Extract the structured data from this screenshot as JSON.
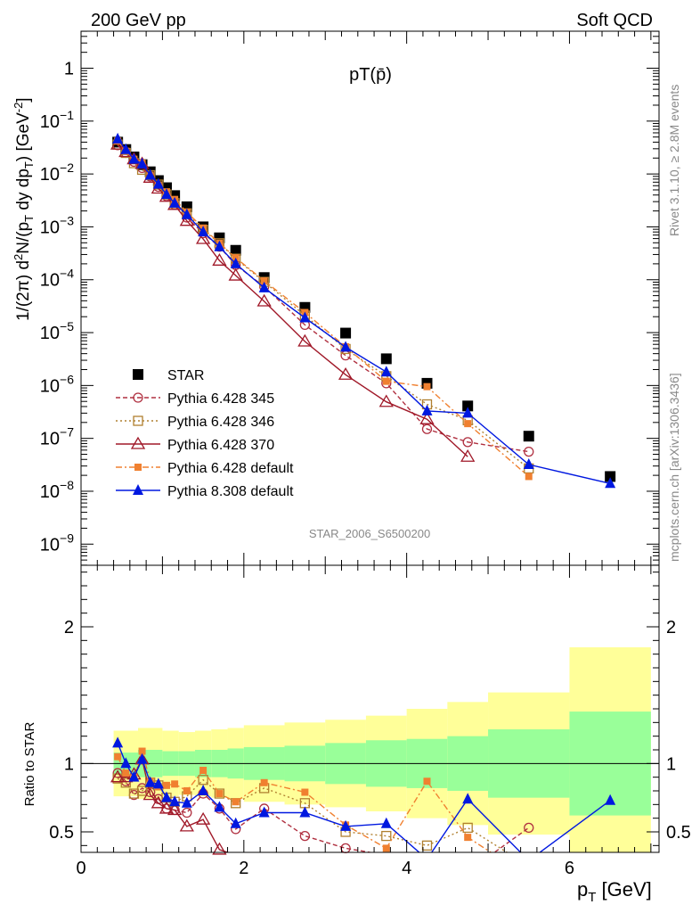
{
  "header": {
    "left": "200 GeV pp",
    "right": "Soft QCD",
    "plot_title": "pT(p̄)",
    "watermark": "STAR_2006_S6500200",
    "side_top": "Rivet 3.1.10, ≥ 2.8M events",
    "side_bottom": "mcplots.cern.ch [arXiv:1306.3436]"
  },
  "colors": {
    "STAR": "#000000",
    "py345": "#b03040",
    "py346": "#b08030",
    "py370": "#a01828",
    "py6def": "#f08030",
    "py8def": "#0018e0",
    "band_inner": "#99ff99",
    "band_outer": "#ffff99"
  },
  "chart_data": [
    {
      "type": "scatter",
      "panel": "main",
      "ylabel": "1/(2π) d²N/(p_T dy dp_T) [GeV⁻²]",
      "yscale": "log",
      "ylim": [
        4e-10,
        5
      ],
      "xlim": [
        0,
        7.1
      ],
      "y_tick_labels": [
        "1",
        "10⁻¹",
        "10⁻²",
        "10⁻³",
        "10⁻⁴",
        "10⁻⁵",
        "10⁻⁶",
        "10⁻⁷",
        "10⁻⁸",
        "10⁻⁹"
      ],
      "legend_position": "lower-left",
      "series": [
        {
          "name": "STAR",
          "key": "STAR",
          "marker": "square-filled",
          "line": "none",
          "x": [
            0.45,
            0.55,
            0.65,
            0.75,
            0.85,
            0.95,
            1.05,
            1.15,
            1.3,
            1.5,
            1.7,
            1.9,
            2.25,
            2.75,
            3.25,
            3.75,
            4.25,
            4.75,
            5.5,
            6.5
          ],
          "y": [
            0.04,
            0.029,
            0.021,
            0.015,
            0.011,
            0.0075,
            0.0055,
            0.0039,
            0.0024,
            0.001,
            0.00062,
            0.00036,
            0.00011,
            3e-05,
            9.8e-06,
            3.2e-06,
            1.1e-06,
            4.1e-07,
            1.1e-07,
            1.9e-08
          ]
        },
        {
          "name": "Pythia 6.428 345",
          "key": "py345",
          "marker": "circle-open",
          "line": "dashed",
          "x": [
            0.45,
            0.55,
            0.65,
            0.75,
            0.85,
            0.95,
            1.05,
            1.15,
            1.3,
            1.5,
            1.7,
            1.9,
            2.25,
            2.75,
            3.25,
            3.75,
            4.25,
            4.75,
            5.5
          ],
          "y": [
            0.035,
            0.025,
            0.017,
            0.013,
            0.009,
            0.0057,
            0.0038,
            0.0026,
            0.0015,
            0.00076,
            0.00042,
            0.00019,
            7.4e-05,
            1.4e-05,
            3.7e-06,
            1.1e-06,
            1.5e-07,
            8.5e-08,
            5.6e-08
          ]
        },
        {
          "name": "Pythia 6.428 346",
          "key": "py346",
          "marker": "square-open",
          "line": "dotted",
          "x": [
            0.45,
            0.55,
            0.65,
            0.75,
            0.85,
            0.95,
            1.05,
            1.15,
            1.3,
            1.5,
            1.7,
            1.9,
            2.25,
            2.75,
            3.25,
            3.75,
            4.25,
            4.75,
            5.5
          ],
          "y": [
            0.036,
            0.025,
            0.016,
            0.012,
            0.0095,
            0.0063,
            0.0041,
            0.0028,
            0.0018,
            0.00088,
            0.00049,
            0.00025,
            9.1e-05,
            2.1e-05,
            4.9e-06,
            1.5e-06,
            4.4e-07,
            2.2e-07,
            2.7e-08
          ]
        },
        {
          "name": "Pythia 6.428 370",
          "key": "py370",
          "marker": "triangle-open",
          "line": "solid",
          "x": [
            0.45,
            0.55,
            0.65,
            0.75,
            0.85,
            0.95,
            1.05,
            1.15,
            1.3,
            1.5,
            1.7,
            1.9,
            2.25,
            2.75,
            3.25,
            3.75,
            4.25,
            4.75
          ],
          "y": [
            0.036,
            0.026,
            0.019,
            0.0155,
            0.0085,
            0.0053,
            0.0037,
            0.0026,
            0.0013,
            0.00059,
            0.00023,
            0.00012,
            3.9e-05,
            6.8e-06,
            1.6e-06,
            4.9e-07,
            2.3e-07,
            4.5e-08
          ]
        },
        {
          "name": "Pythia 6.428 default",
          "key": "py6def",
          "marker": "square-filled-small",
          "line": "dash-dot",
          "x": [
            0.45,
            0.55,
            0.65,
            0.75,
            0.85,
            0.95,
            1.05,
            1.15,
            1.3,
            1.5,
            1.7,
            1.9,
            2.25,
            2.75,
            3.25,
            3.75,
            4.25,
            4.75,
            5.5
          ],
          "y": [
            0.042,
            0.027,
            0.019,
            0.016,
            0.0095,
            0.0062,
            0.0046,
            0.0033,
            0.0019,
            0.00095,
            0.00049,
            0.00026,
            9.5e-05,
            2.4e-05,
            5.4e-06,
            1.2e-06,
            9.5e-07,
            1.9e-07,
            1.9e-08
          ]
        },
        {
          "name": "Pythia 8.308 default",
          "key": "py8def",
          "marker": "triangle-filled",
          "line": "solid",
          "x": [
            0.45,
            0.55,
            0.65,
            0.75,
            0.85,
            0.95,
            1.05,
            1.15,
            1.3,
            1.5,
            1.7,
            1.9,
            2.25,
            2.75,
            3.25,
            3.75,
            4.25,
            4.75,
            5.5,
            6.5
          ],
          "y": [
            0.046,
            0.029,
            0.019,
            0.0155,
            0.0095,
            0.0064,
            0.0041,
            0.0028,
            0.0017,
            0.0008,
            0.00042,
            0.0002,
            7e-05,
            1.9e-05,
            5.3e-06,
            1.8e-06,
            3.3e-07,
            3e-07,
            3.2e-08,
            1.4e-08
          ]
        }
      ]
    },
    {
      "type": "line",
      "panel": "ratio",
      "ylabel": "Ratio to STAR",
      "xlabel": "p_T [GeV]",
      "xlim": [
        0,
        7.1
      ],
      "ylim": [
        0.35,
        2.45
      ],
      "x_ticks": [
        0,
        2,
        4,
        6
      ],
      "x_tick_labels": [
        "0",
        "2",
        "4",
        "6"
      ],
      "y_ticks": [
        0.5,
        1,
        2
      ],
      "y_tick_labels": [
        "0.5",
        "1",
        "2"
      ],
      "reference_line": 1,
      "uncertainty_band": {
        "x_edges": [
          0.4,
          0.7,
          1.0,
          1.2,
          1.4,
          1.6,
          1.8,
          2.0,
          2.5,
          3.0,
          3.5,
          4.0,
          4.5,
          5.0,
          6.0,
          7.0
        ],
        "inner_rel": [
          0.08,
          0.1,
          0.09,
          0.09,
          0.1,
          0.1,
          0.11,
          0.12,
          0.13,
          0.15,
          0.17,
          0.18,
          0.2,
          0.25,
          0.38
        ],
        "outer_rel": [
          0.24,
          0.26,
          0.24,
          0.23,
          0.24,
          0.25,
          0.26,
          0.28,
          0.3,
          0.32,
          0.35,
          0.4,
          0.45,
          0.52,
          0.85
        ]
      },
      "series": [
        {
          "name": "Pythia 6.428 345",
          "key": "py345",
          "x": [
            0.45,
            0.55,
            0.65,
            0.75,
            0.85,
            0.95,
            1.05,
            1.15,
            1.3,
            1.5,
            1.7,
            1.9,
            2.25,
            2.75,
            3.25,
            3.75,
            4.25,
            4.75,
            5.5
          ],
          "y": [
            0.93,
            0.87,
            0.77,
            0.82,
            0.79,
            0.74,
            0.67,
            0.66,
            0.64,
            0.78,
            0.67,
            0.52,
            0.67,
            0.47,
            0.38,
            0.33,
            0.14,
            0.21,
            0.53
          ]
        },
        {
          "name": "Pythia 6.428 346",
          "key": "py346",
          "x": [
            0.45,
            0.55,
            0.65,
            0.75,
            0.85,
            0.95,
            1.05,
            1.15,
            1.3,
            1.5,
            1.7,
            1.9,
            2.25,
            2.75,
            3.25,
            3.75,
            4.25,
            4.75,
            5.5
          ],
          "y": [
            0.89,
            0.86,
            0.78,
            0.8,
            0.86,
            0.84,
            0.75,
            0.72,
            0.76,
            0.88,
            0.78,
            0.71,
            0.82,
            0.71,
            0.5,
            0.47,
            0.4,
            0.53,
            0.25
          ]
        },
        {
          "name": "Pythia 6.428 370",
          "key": "py370",
          "x": [
            0.45,
            0.55,
            0.65,
            0.75,
            0.85,
            0.95,
            1.05,
            1.15,
            1.3,
            1.5,
            1.7,
            1.9
          ],
          "y": [
            0.9,
            0.9,
            0.92,
            1.03,
            0.77,
            0.71,
            0.67,
            0.66,
            0.54,
            0.59,
            0.37,
            0.33
          ]
        },
        {
          "name": "Pythia 6.428 default",
          "key": "py6def",
          "x": [
            0.45,
            0.55,
            0.65,
            0.75,
            0.85,
            0.95,
            1.05,
            1.15,
            1.3,
            1.5,
            1.7,
            1.9,
            2.25,
            2.75,
            3.25,
            3.75,
            4.25,
            4.75,
            5.5
          ],
          "y": [
            1.05,
            0.93,
            0.9,
            1.09,
            0.87,
            0.83,
            0.84,
            0.85,
            0.8,
            0.95,
            0.78,
            0.72,
            0.86,
            0.79,
            0.55,
            0.38,
            0.87,
            0.46,
            0.17
          ]
        },
        {
          "name": "Pythia 8.308 default",
          "key": "py8def",
          "x": [
            0.45,
            0.55,
            0.65,
            0.75,
            0.85,
            0.95,
            1.05,
            1.15,
            1.3,
            1.5,
            1.7,
            1.9,
            2.25,
            2.75,
            3.25,
            3.75,
            4.25,
            4.75,
            5.5,
            6.5
          ],
          "y": [
            1.15,
            1.0,
            0.9,
            1.03,
            0.86,
            0.85,
            0.75,
            0.72,
            0.71,
            0.8,
            0.68,
            0.56,
            0.64,
            0.64,
            0.54,
            0.56,
            0.3,
            0.74,
            0.29,
            0.73
          ]
        }
      ]
    }
  ]
}
